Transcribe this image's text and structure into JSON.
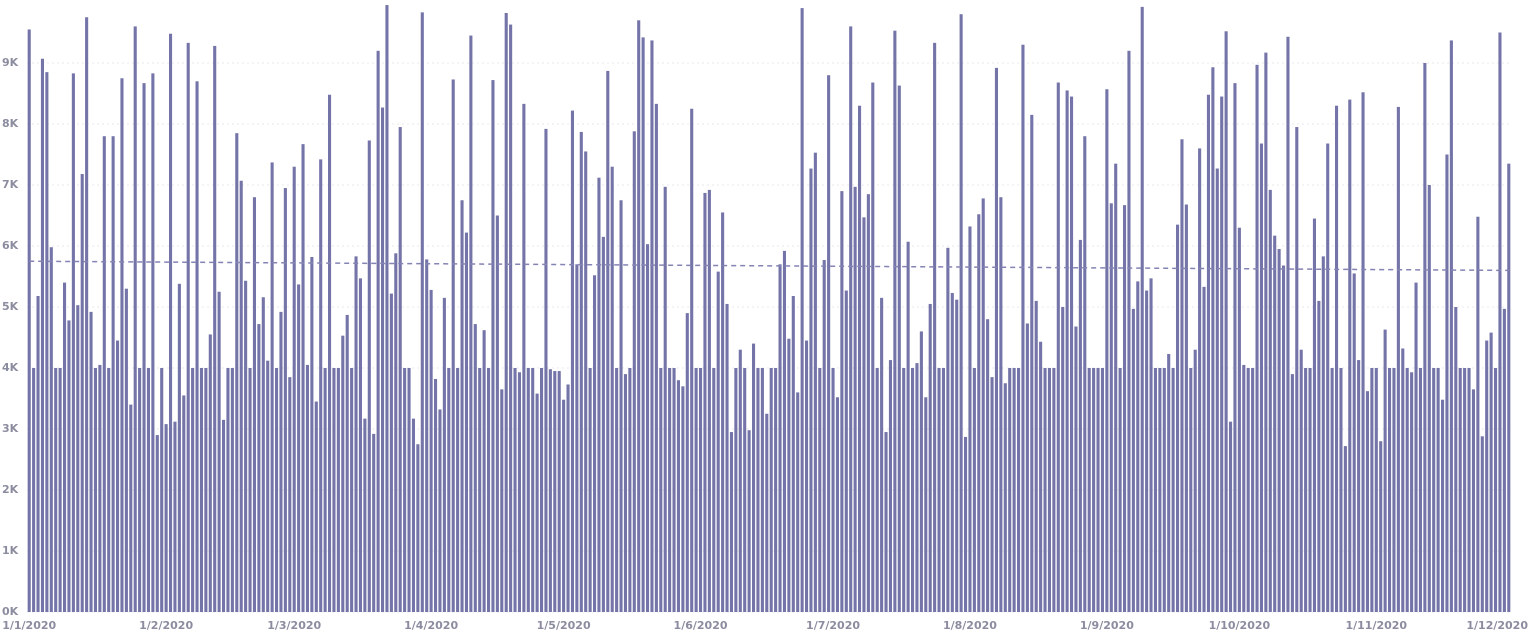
{
  "chart_data": {
    "type": "bar",
    "color": "#7474a8",
    "trend_line": [
      5.75,
      5.6
    ],
    "trend_color": "#8484b4",
    "ylim": [
      0,
      10
    ],
    "yticks": [
      {
        "value": 0,
        "label": "0K"
      },
      {
        "value": 1,
        "label": "1K"
      },
      {
        "value": 2,
        "label": "2K"
      },
      {
        "value": 3,
        "label": "3K"
      },
      {
        "value": 4,
        "label": "4K"
      },
      {
        "value": 5,
        "label": "5K"
      },
      {
        "value": 6,
        "label": "6K"
      },
      {
        "value": 7,
        "label": "7K"
      },
      {
        "value": 8,
        "label": "8K"
      },
      {
        "value": 9,
        "label": "9K"
      }
    ],
    "grid": true,
    "categories": [
      "1/1/2020",
      null,
      null,
      null,
      null,
      null,
      null,
      null,
      null,
      null,
      null,
      null,
      null,
      null,
      null,
      null,
      null,
      null,
      null,
      null,
      null,
      null,
      null,
      null,
      null,
      null,
      null,
      null,
      null,
      null,
      null,
      "1/2/2020",
      null,
      null,
      null,
      null,
      null,
      null,
      null,
      null,
      null,
      null,
      null,
      null,
      null,
      null,
      null,
      null,
      null,
      null,
      null,
      null,
      null,
      null,
      null,
      null,
      null,
      null,
      null,
      null,
      "1/3/2020",
      null,
      null,
      null,
      null,
      null,
      null,
      null,
      null,
      null,
      null,
      null,
      null,
      null,
      null,
      null,
      null,
      null,
      null,
      null,
      null,
      null,
      null,
      null,
      null,
      null,
      null,
      null,
      null,
      null,
      null,
      "1/4/2020",
      null,
      null,
      null,
      null,
      null,
      null,
      null,
      null,
      null,
      null,
      null,
      null,
      null,
      null,
      null,
      null,
      null,
      null,
      null,
      null,
      null,
      null,
      null,
      null,
      null,
      null,
      null,
      null,
      null,
      "1/5/2020",
      null,
      null,
      null,
      null,
      null,
      null,
      null,
      null,
      null,
      null,
      null,
      null,
      null,
      null,
      null,
      null,
      null,
      null,
      null,
      null,
      null,
      null,
      null,
      null,
      null,
      null,
      null,
      null,
      null,
      null,
      "1/6/2020",
      null,
      null,
      null,
      null,
      null,
      null,
      null,
      null,
      null,
      null,
      null,
      null,
      null,
      null,
      null,
      null,
      null,
      null,
      null,
      null,
      null,
      null,
      null,
      null,
      null,
      null,
      null,
      null,
      null,
      "1/7/2020",
      null,
      null,
      null,
      null,
      null,
      null,
      null,
      null,
      null,
      null,
      null,
      null,
      null,
      null,
      null,
      null,
      null,
      null,
      null,
      null,
      null,
      null,
      null,
      null,
      null,
      null,
      null,
      null,
      null,
      null,
      "1/8/2020",
      null,
      null,
      null,
      null,
      null,
      null,
      null,
      null,
      null,
      null,
      null,
      null,
      null,
      null,
      null,
      null,
      null,
      null,
      null,
      null,
      null,
      null,
      null,
      null,
      null,
      null,
      null,
      null,
      null,
      null,
      "1/9/2020",
      null,
      null,
      null,
      null,
      null,
      null,
      null,
      null,
      null,
      null,
      null,
      null,
      null,
      null,
      null,
      null,
      null,
      null,
      null,
      null,
      null,
      null,
      null,
      null,
      null,
      null,
      null,
      null,
      null,
      "1/10/2020",
      null,
      null,
      null,
      null,
      null,
      null,
      null,
      null,
      null,
      null,
      null,
      null,
      null,
      null,
      null,
      null,
      null,
      null,
      null,
      null,
      null,
      null,
      null,
      null,
      null,
      null,
      null,
      null,
      null,
      null,
      "1/11/2020",
      null,
      null,
      null,
      null,
      null,
      null,
      null,
      null,
      null,
      null,
      null,
      null,
      null,
      null,
      null,
      null,
      null,
      null,
      null,
      null,
      null,
      null,
      null,
      null,
      null,
      null,
      null,
      null,
      null,
      "1/12/2020"
    ],
    "values": [
      9.55,
      4.0,
      5.18,
      9.07,
      8.85,
      5.98,
      4.0,
      4.0,
      5.4,
      4.78,
      8.83,
      5.03,
      7.18,
      9.75,
      4.92,
      4.0,
      4.05,
      7.8,
      4.0,
      7.8,
      4.45,
      8.75,
      5.3,
      3.4,
      9.6,
      4.0,
      8.67,
      4.0,
      8.83,
      2.9,
      4.0,
      3.08,
      9.48,
      3.12,
      5.38,
      3.55,
      9.33,
      4.0,
      8.7,
      4.0,
      4.0,
      4.55,
      9.28,
      5.25,
      3.15,
      4.0,
      4.0,
      7.85,
      7.07,
      5.43,
      4.0,
      6.8,
      4.72,
      5.16,
      4.12,
      7.37,
      4.0,
      4.92,
      6.95,
      3.85,
      7.3,
      5.37,
      7.67,
      4.05,
      5.82,
      3.45,
      7.42,
      4.0,
      8.48,
      4.0,
      4.0,
      4.53,
      4.87,
      4.0,
      5.83,
      5.47,
      3.17,
      7.73,
      2.92,
      9.2,
      8.27,
      9.95,
      5.22,
      5.88,
      7.95,
      4.0,
      4.0,
      3.17,
      2.75,
      9.83,
      5.78,
      5.28,
      3.82,
      3.32,
      5.15,
      4.0,
      8.73,
      4.0,
      6.75,
      6.22,
      9.45,
      4.72,
      4.0,
      4.62,
      4.0,
      8.72,
      6.5,
      3.65,
      9.82,
      9.63,
      4.0,
      3.93,
      8.33,
      4.0,
      4.0,
      3.58,
      4.0,
      7.92,
      3.98,
      3.95,
      3.95,
      3.48,
      3.73,
      8.22,
      5.7,
      7.87,
      7.55,
      4.0,
      5.52,
      7.12,
      6.15,
      8.87,
      7.3,
      4.0,
      6.75,
      3.9,
      4.0,
      7.88,
      9.7,
      9.42,
      6.03,
      9.37,
      8.33,
      4.0,
      6.97,
      4.0,
      4.0,
      3.8,
      3.7,
      4.9,
      8.25,
      4.0,
      4.0,
      6.87,
      6.92,
      4.0,
      5.58,
      6.55,
      5.05,
      2.95,
      4.0,
      4.3,
      4.0,
      2.98,
      4.4,
      4.0,
      4.0,
      3.25,
      4.0,
      4.0,
      5.7,
      5.92,
      4.48,
      5.18,
      3.6,
      9.9,
      4.45,
      7.27,
      7.53,
      4.0,
      5.77,
      8.8,
      4.0,
      3.52,
      6.9,
      5.27,
      9.6,
      6.97,
      8.3,
      6.47,
      6.85,
      8.68,
      4.0,
      5.15,
      2.95,
      4.13,
      9.53,
      8.63,
      4.0,
      6.07,
      4.0,
      4.08,
      4.6,
      3.52,
      5.05,
      9.33,
      4.0,
      4.0,
      5.97,
      5.23,
      5.12,
      9.8,
      2.87,
      6.32,
      4.0,
      6.52,
      6.78,
      4.8,
      3.85,
      8.92,
      6.8,
      3.75,
      4.0,
      4.0,
      4.0,
      9.3,
      4.73,
      8.15,
      5.1,
      4.43,
      4.0,
      4.0,
      4.0,
      8.68,
      5.0,
      8.55,
      8.45,
      4.68,
      6.1,
      7.8,
      4.0,
      4.0,
      4.0,
      4.0,
      8.57,
      6.7,
      7.35,
      4.0,
      6.67,
      9.2,
      4.97,
      5.42,
      9.92,
      5.27,
      5.47,
      4.0,
      4.0,
      4.0,
      4.23,
      4.0,
      6.35,
      7.75,
      6.68,
      4.0,
      4.3,
      7.6,
      5.33,
      8.48,
      8.93,
      7.27,
      8.45,
      9.52,
      3.12,
      8.67,
      6.3,
      4.05,
      4.0,
      4.0,
      8.97,
      7.68,
      9.17,
      6.92,
      6.17,
      5.95,
      5.68,
      9.43,
      3.9,
      7.95,
      4.3,
      4.0,
      4.0,
      6.45,
      5.1,
      5.83,
      7.68,
      4.0,
      8.3,
      4.0,
      2.72,
      8.4,
      5.55,
      4.13,
      8.52,
      3.62,
      4.0,
      4.0,
      2.8,
      4.63,
      4.0,
      4.0,
      8.28,
      4.32,
      4.0,
      3.93,
      5.4,
      4.0,
      9.0,
      7.0,
      4.0,
      4.0,
      3.48,
      7.5,
      9.37,
      5.0,
      4.0,
      4.0,
      4.0,
      3.65,
      6.48,
      2.88,
      4.45,
      4.58,
      4.0,
      9.5,
      4.97,
      7.35
    ]
  }
}
